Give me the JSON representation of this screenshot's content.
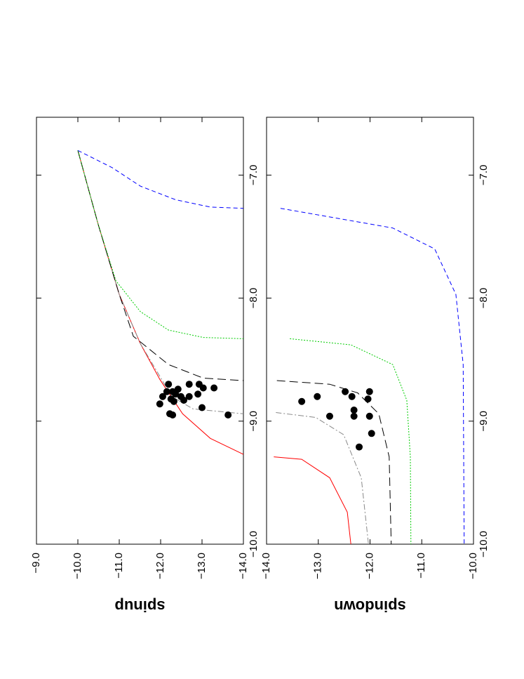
{
  "chart_data": [
    {
      "type": "line",
      "y_label": "spinup",
      "xlim": [
        -10,
        -6.53
      ],
      "ylim": [
        -9,
        -14
      ],
      "xticks": [
        {
          "value": -10,
          "label": "−10.0"
        },
        {
          "value": -9,
          "label": "−9.0"
        },
        {
          "value": -8,
          "label": "−8.0"
        },
        {
          "value": -7,
          "label": "−7.0"
        }
      ],
      "yticks": [
        {
          "value": -9,
          "label": "−9.0"
        },
        {
          "value": -10,
          "label": "−10.0"
        },
        {
          "value": -11,
          "label": "−11.0"
        },
        {
          "value": -12,
          "label": "−12.0"
        },
        {
          "value": -13,
          "label": "−13.0"
        },
        {
          "value": -14,
          "label": "−14.0"
        }
      ],
      "series": [
        {
          "color": "#ff0000",
          "style": "solid",
          "x": [
            -6.8,
            -7.4,
            -7.97,
            -8.37,
            -8.66,
            -8.94,
            -9.14,
            -9.27
          ],
          "values": [
            -10.0,
            -10.49,
            -11.0,
            -11.51,
            -11.98,
            -12.53,
            -13.2,
            -14.0
          ]
        },
        {
          "color": "#888888",
          "style": "dashdot",
          "x": [
            -6.8,
            -7.4,
            -7.97,
            -8.37,
            -8.51,
            -8.8,
            -8.9,
            -8.94
          ],
          "values": [
            -10.0,
            -10.49,
            -11.0,
            -11.51,
            -11.76,
            -12.27,
            -12.78,
            -14.0
          ]
        },
        {
          "color": "#000000",
          "style": "dashed",
          "x": [
            -6.8,
            -7.4,
            -7.97,
            -8.31,
            -8.54,
            -8.65,
            -8.67
          ],
          "values": [
            -10.0,
            -10.49,
            -11.0,
            -11.34,
            -12.19,
            -13.03,
            -14.0
          ]
        },
        {
          "color": "#00cc00",
          "style": "dotted",
          "x": [
            -6.8,
            -7.4,
            -7.86,
            -8.11,
            -8.26,
            -8.32,
            -8.33
          ],
          "values": [
            -10.0,
            -10.49,
            -10.92,
            -11.51,
            -12.19,
            -13.03,
            -14.0
          ]
        },
        {
          "color": "#0000ff",
          "style": "dashed-fine",
          "x": [
            -6.8,
            -6.94,
            -7.09,
            -7.2,
            -7.26,
            -7.27
          ],
          "values": [
            -10.0,
            -10.83,
            -11.51,
            -12.36,
            -13.2,
            -14.0
          ]
        },
        {
          "color": "#000000",
          "style": "dots",
          "x": [
            -8.7,
            -8.8,
            -8.86,
            -8.76,
            -8.84,
            -8.74,
            -8.8,
            -8.83,
            -8.7,
            -8.8,
            -8.7,
            -8.78,
            -8.73,
            -8.73,
            -8.89,
            -8.94,
            -8.95,
            -8.95,
            -8.82,
            -8.78,
            -8.76
          ],
          "values": [
            -12.19,
            -12.05,
            -11.98,
            -12.29,
            -12.32,
            -12.42,
            -12.49,
            -12.56,
            -12.69,
            -12.69,
            -12.93,
            -12.9,
            -13.03,
            -13.29,
            -13.0,
            -12.22,
            -12.29,
            -13.63,
            -12.25,
            -12.36,
            -12.15
          ]
        }
      ]
    },
    {
      "type": "line",
      "y_label": "spindown",
      "xlim": [
        -10,
        -6.53
      ],
      "ylim": [
        -14,
        -10
      ],
      "xticks": [
        {
          "value": -10,
          "label": "−10.0"
        },
        {
          "value": -9,
          "label": "−9.0"
        },
        {
          "value": -8,
          "label": "−8.0"
        },
        {
          "value": -7,
          "label": "−7.0"
        }
      ],
      "yticks": [
        {
          "value": -14,
          "label": "−14.0"
        },
        {
          "value": -13,
          "label": "−13.0"
        },
        {
          "value": -12,
          "label": "−12.0"
        },
        {
          "value": -11,
          "label": "−11.0"
        },
        {
          "value": -10,
          "label": "−10.0"
        }
      ],
      "series": [
        {
          "color": "#ff0000",
          "style": "solid",
          "x": [
            -9.29,
            -9.31,
            -9.46,
            -9.74,
            -10.0
          ],
          "values": [
            -13.86,
            -13.32,
            -12.78,
            -12.44,
            -12.37
          ]
        },
        {
          "color": "#888888",
          "style": "dashdot",
          "x": [
            -8.93,
            -8.97,
            -9.11,
            -9.46,
            -10.0
          ],
          "values": [
            -13.82,
            -13.05,
            -12.51,
            -12.17,
            -12.03
          ]
        },
        {
          "color": "#000000",
          "style": "dashed",
          "x": [
            -8.67,
            -8.7,
            -8.77,
            -8.94,
            -9.29,
            -10.0
          ],
          "values": [
            -13.8,
            -12.78,
            -12.24,
            -11.83,
            -11.63,
            -11.59
          ]
        },
        {
          "color": "#00cc00",
          "style": "dotted",
          "x": [
            -8.33,
            -8.38,
            -8.54,
            -8.83,
            -9.29,
            -10.0
          ],
          "values": [
            -13.55,
            -12.37,
            -11.56,
            -11.29,
            -11.22,
            -11.21
          ]
        },
        {
          "color": "#0000ff",
          "style": "dashed-fine",
          "x": [
            -7.27,
            -7.43,
            -7.6,
            -7.97,
            -8.54,
            -10.0
          ],
          "values": [
            -13.73,
            -11.56,
            -10.75,
            -10.34,
            -10.2,
            -10.18
          ]
        },
        {
          "color": "#000000",
          "style": "dots",
          "x": [
            -8.84,
            -8.8,
            -8.96,
            -8.76,
            -8.8,
            -8.91,
            -8.96,
            -9.21,
            -8.76,
            -8.82,
            -8.96,
            -9.1
          ],
          "values": [
            -13.32,
            -13.02,
            -12.78,
            -12.48,
            -12.35,
            -12.31,
            -12.31,
            -12.21,
            -12.01,
            -12.04,
            -12.01,
            -11.97
          ]
        }
      ]
    }
  ]
}
